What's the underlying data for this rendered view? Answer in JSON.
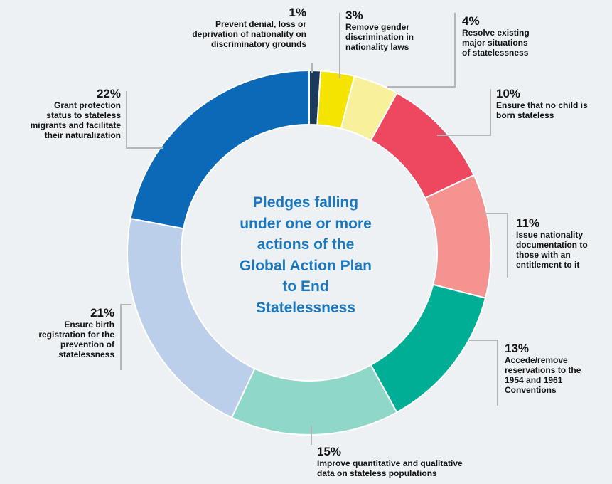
{
  "chart_data": {
    "type": "pie",
    "variant": "donut",
    "title": "Pledges falling under one or more actions of the Global Action Plan to End Statelessness",
    "center_lines": [
      "Pledges falling",
      "under one or more",
      "actions of the",
      "Global Action Plan",
      "to End",
      "Statelessness"
    ],
    "slices": [
      {
        "value": 1,
        "pct_label": "1%",
        "label": "Prevent denial, loss or\ndeprivation of nationality on\ndiscriminatory grounds",
        "color": "#1b3a5c"
      },
      {
        "value": 3,
        "pct_label": "3%",
        "label": "Remove gender\ndiscrimination in\nnationality laws",
        "color": "#f5e400"
      },
      {
        "value": 4,
        "pct_label": "4%",
        "label": "Resolve existing\nmajor situations\nof statelessness",
        "color": "#f8f09a"
      },
      {
        "value": 10,
        "pct_label": "10%",
        "label": "Ensure that no child is\nborn stateless",
        "color": "#ee4860"
      },
      {
        "value": 11,
        "pct_label": "11%",
        "label": "Issue nationality\ndocumentation to\nthose with an\nentitlement to it",
        "color": "#f59391"
      },
      {
        "value": 13,
        "pct_label": "13%",
        "label": "Accede/remove\nreservations to the\n1954 and 1961\nConventions",
        "color": "#00ae95"
      },
      {
        "value": 15,
        "pct_label": "15%",
        "label": "Improve quantitative and qualitative\ndata on stateless populations",
        "color": "#8ed7c9"
      },
      {
        "value": 21,
        "pct_label": "21%",
        "label": "Ensure birth\nregistration for the\nprevention of\nstatelessness",
        "color": "#bccfea"
      },
      {
        "value": 22,
        "pct_label": "22%",
        "label": "Grant protection\nstatus to stateless\nmigrants and facilitate\ntheir naturalization",
        "color": "#0b69b7"
      }
    ]
  }
}
